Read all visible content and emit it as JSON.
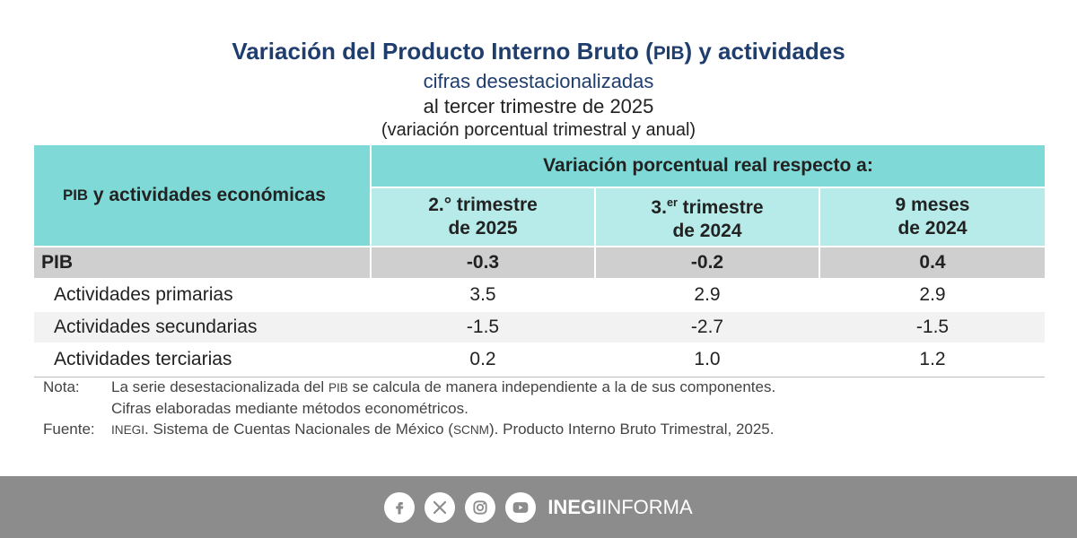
{
  "title": {
    "line1_a": "Variación del Producto Interno Bruto (",
    "line1_sc": "PIB",
    "line1_b": ") y actividades",
    "line2": "cifras desestacionalizadas",
    "line3": "al tercer trimestre de 2025",
    "line4": "(variación porcentual trimestral y anual)"
  },
  "table": {
    "header_left_sc": "PIB",
    "header_left_rest": " y actividades económicas",
    "header_top": "Variación porcentual real respecto a:",
    "columns": [
      {
        "line1a": "2.° trimestre",
        "line1sup": "",
        "line1b": "",
        "line2": "de 2025"
      },
      {
        "line1a": "3.",
        "line1sup": "er",
        "line1b": " trimestre",
        "line2": "de 2024"
      },
      {
        "line1a": "9 meses",
        "line1sup": "",
        "line1b": "",
        "line2": "de 2024"
      }
    ],
    "rows": [
      {
        "label": "PIB",
        "values": [
          "-0.3",
          "-0.2",
          "0.4"
        ]
      },
      {
        "label": "Actividades primarias",
        "values": [
          "3.5",
          "2.9",
          "2.9"
        ]
      },
      {
        "label": "Actividades secundarias",
        "values": [
          "-1.5",
          "-2.7",
          "-1.5"
        ]
      },
      {
        "label": "Actividades terciarias",
        "values": [
          "0.2",
          "1.0",
          "1.2"
        ]
      }
    ]
  },
  "notes": {
    "nota_label": "Nota:",
    "nota_line1_a": "La serie desestacionalizada del ",
    "nota_line1_sc": "PIB",
    "nota_line1_b": " se calcula de manera independiente a la de sus componentes.",
    "nota_line2": "Cifras elaboradas mediante métodos econométricos.",
    "fuente_label": "Fuente:",
    "fuente_sc1": "INEGI",
    "fuente_a": ". Sistema de Cuentas Nacionales de México (",
    "fuente_sc2": "SCNM",
    "fuente_b": "). Producto Interno Bruto Trimestral, 2025."
  },
  "footer": {
    "icons": [
      "facebook-icon",
      "x-icon",
      "instagram-icon",
      "youtube-icon"
    ],
    "brand_bold": "INEGI",
    "brand_light": "INFORMA"
  },
  "colors": {
    "header_dark": "#7fd9d6",
    "header_light": "#b7ebe9",
    "pib_row": "#cfcfcf",
    "title_blue": "#1f3e6e",
    "footer": "#8c8c8c"
  }
}
